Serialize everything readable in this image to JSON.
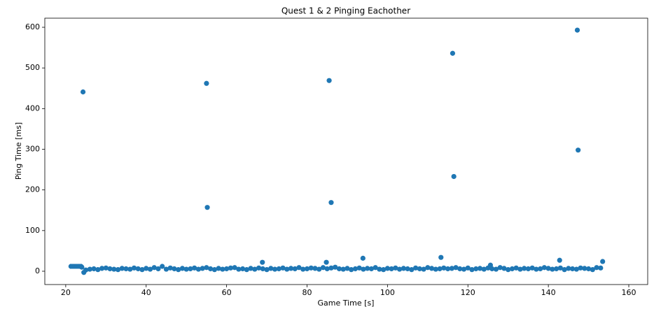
{
  "chart_data": {
    "type": "scatter",
    "title": "Quest 1 & 2 Pinging Eachother",
    "xlabel": "Game Time [s]",
    "ylabel": "Ping Time [ms]",
    "color": "#1f77b4",
    "xlim": [
      14.8,
      164.7
    ],
    "ylim": [
      -32.7,
      622.4
    ],
    "xticks": [
      20,
      40,
      60,
      80,
      100,
      120,
      140,
      160
    ],
    "yticks": [
      0,
      100,
      200,
      300,
      400,
      500,
      600
    ],
    "x": [
      21.3,
      21.8,
      22.3,
      22.8,
      23.3,
      23.8,
      24,
      24.5,
      25,
      26,
      27,
      28,
      29,
      30,
      31,
      32,
      33,
      34,
      35,
      36,
      37,
      38,
      39,
      40,
      41,
      42,
      43,
      44,
      45,
      46,
      47,
      48,
      49,
      50,
      51,
      52,
      53,
      54,
      55,
      56,
      57,
      58,
      59,
      60,
      61,
      62,
      63,
      64,
      65,
      66,
      67,
      68,
      69,
      70,
      71,
      72,
      73,
      74,
      75,
      76,
      77,
      78,
      79,
      80,
      81,
      82,
      83,
      84,
      85,
      86,
      87,
      88,
      89,
      90,
      91,
      92,
      93,
      94,
      95,
      96,
      97,
      98,
      99,
      100,
      101,
      102,
      103,
      104,
      105,
      106,
      107,
      108,
      109,
      110,
      111,
      112,
      113,
      114,
      115,
      116,
      117,
      118,
      119,
      120,
      121,
      122,
      123,
      124,
      125,
      126,
      127,
      128,
      129,
      130,
      131,
      132,
      133,
      134,
      135,
      136,
      137,
      138,
      139,
      140,
      141,
      142,
      143,
      144,
      145,
      146,
      147,
      148,
      149,
      150,
      151,
      152,
      153,
      24.3,
      55,
      55.2,
      85.5,
      86,
      116.2,
      116.5,
      147.2,
      147.4,
      68.9,
      84.8,
      93.9,
      113.3,
      125.6,
      142.8,
      153.5
    ],
    "y": [
      12,
      12,
      12,
      12,
      12,
      12,
      10,
      -3,
      3,
      5,
      6,
      4,
      7,
      8,
      6,
      5,
      4,
      7,
      6,
      5,
      8,
      6,
      4,
      7,
      5,
      9,
      6,
      12,
      5,
      8,
      6,
      4,
      7,
      5,
      6,
      8,
      5,
      7,
      9,
      6,
      4,
      7,
      5,
      6,
      8,
      9,
      5,
      6,
      4,
      7,
      5,
      8,
      6,
      4,
      7,
      5,
      6,
      8,
      5,
      7,
      6,
      9,
      5,
      6,
      8,
      7,
      5,
      9,
      6,
      8,
      10,
      6,
      5,
      7,
      4,
      6,
      8,
      5,
      7,
      6,
      9,
      5,
      4,
      7,
      6,
      8,
      5,
      7,
      6,
      4,
      8,
      6,
      5,
      9,
      7,
      5,
      6,
      8,
      6,
      7,
      9,
      6,
      5,
      8,
      4,
      6,
      7,
      5,
      8,
      6,
      5,
      9,
      7,
      4,
      6,
      8,
      5,
      7,
      6,
      8,
      5,
      6,
      9,
      7,
      5,
      6,
      8,
      4,
      7,
      6,
      5,
      8,
      7,
      6,
      4,
      9,
      8,
      441,
      462,
      157,
      469,
      169,
      536,
      233,
      593,
      298,
      22,
      22,
      32,
      34,
      15,
      27,
      24
    ]
  }
}
